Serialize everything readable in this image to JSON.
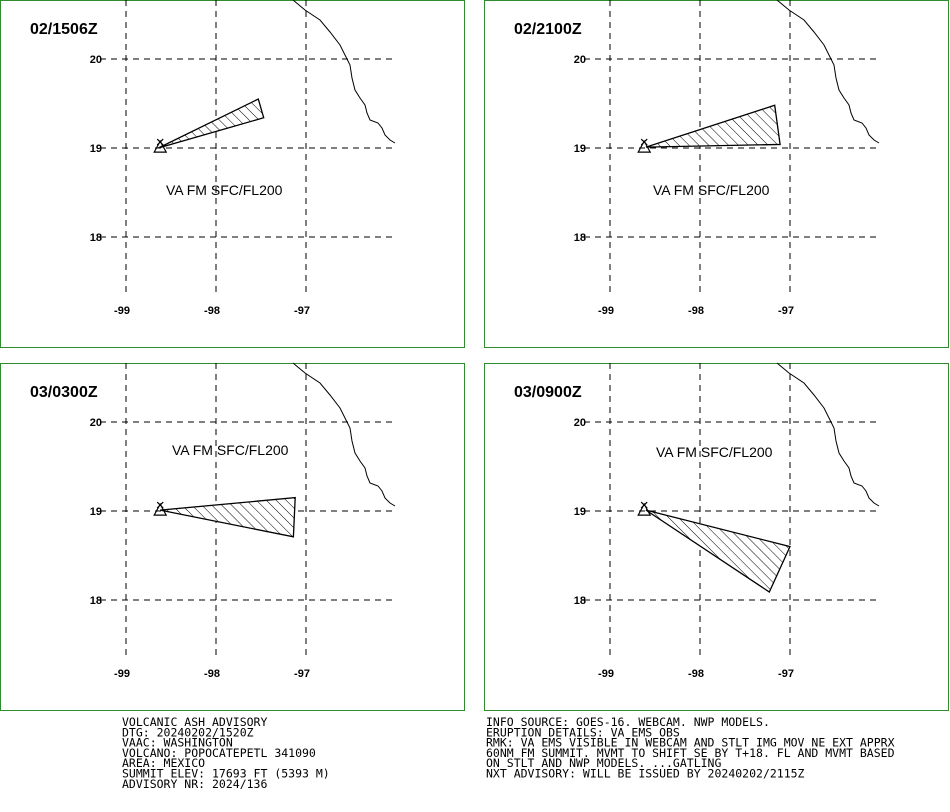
{
  "panels": [
    {
      "title": "02/1506Z",
      "label": "VA FM SFC/FL200",
      "lat_ticks": [
        20,
        19,
        18
      ],
      "lon_ticks": [
        -99,
        -98,
        -97
      ],
      "polygon": [
        [
          -98.64,
          19.0
        ],
        [
          -97.53,
          19.55
        ],
        [
          -97.47,
          19.34
        ]
      ]
    },
    {
      "title": "02/2100Z",
      "label": "VA FM SFC/FL200",
      "lat_ticks": [
        20,
        19,
        18
      ],
      "lon_ticks": [
        -99,
        -98,
        -97
      ],
      "polygon": [
        [
          -98.6,
          19.01
        ],
        [
          -97.17,
          19.48
        ],
        [
          -97.11,
          19.04
        ]
      ]
    },
    {
      "title": "03/0300Z",
      "label": "VA FM SFC/FL200",
      "lat_ticks": [
        20,
        19,
        18
      ],
      "lon_ticks": [
        -99,
        -98,
        -97
      ],
      "polygon": [
        [
          -98.62,
          19.01
        ],
        [
          -97.12,
          19.15
        ],
        [
          -97.14,
          18.71
        ]
      ]
    },
    {
      "title": "03/0900Z",
      "label": "VA FM SFC/FL200",
      "lat_ticks": [
        20,
        19,
        18
      ],
      "lon_ticks": [
        -99,
        -98,
        -97
      ],
      "polygon": [
        [
          -98.6,
          19.01
        ],
        [
          -97.0,
          18.6
        ],
        [
          -97.23,
          18.09
        ]
      ]
    }
  ],
  "advisory_left": [
    "VOLCANIC ASH ADVISORY",
    "DTG: 20240202/1520Z",
    "VAAC: WASHINGTON",
    "VOLCANO: POPOCATEPETL 341090",
    "AREA: MEXICO",
    "SUMMIT ELEV: 17693 FT (5393 M)",
    "ADVISORY NR: 2024/136"
  ],
  "advisory_right": [
    "INFO SOURCE: GOES-16. WEBCAM. NWP MODELS.",
    "ERUPTION DETAILS: VA EMS OBS",
    "RMK: VA EMS VISIBLE IN WEBCAM AND STLT IMG MOV NE EXT APPRX",
    "60NM FM SUMMIT. MVMT TO SHIFT SE BY T+18. FL AND MVMT BASED",
    "ON STLT AND NWP MODELS. ...GATLING",
    "NXT ADVISORY: WILL BE ISSUED BY 20240202/2115Z"
  ]
}
